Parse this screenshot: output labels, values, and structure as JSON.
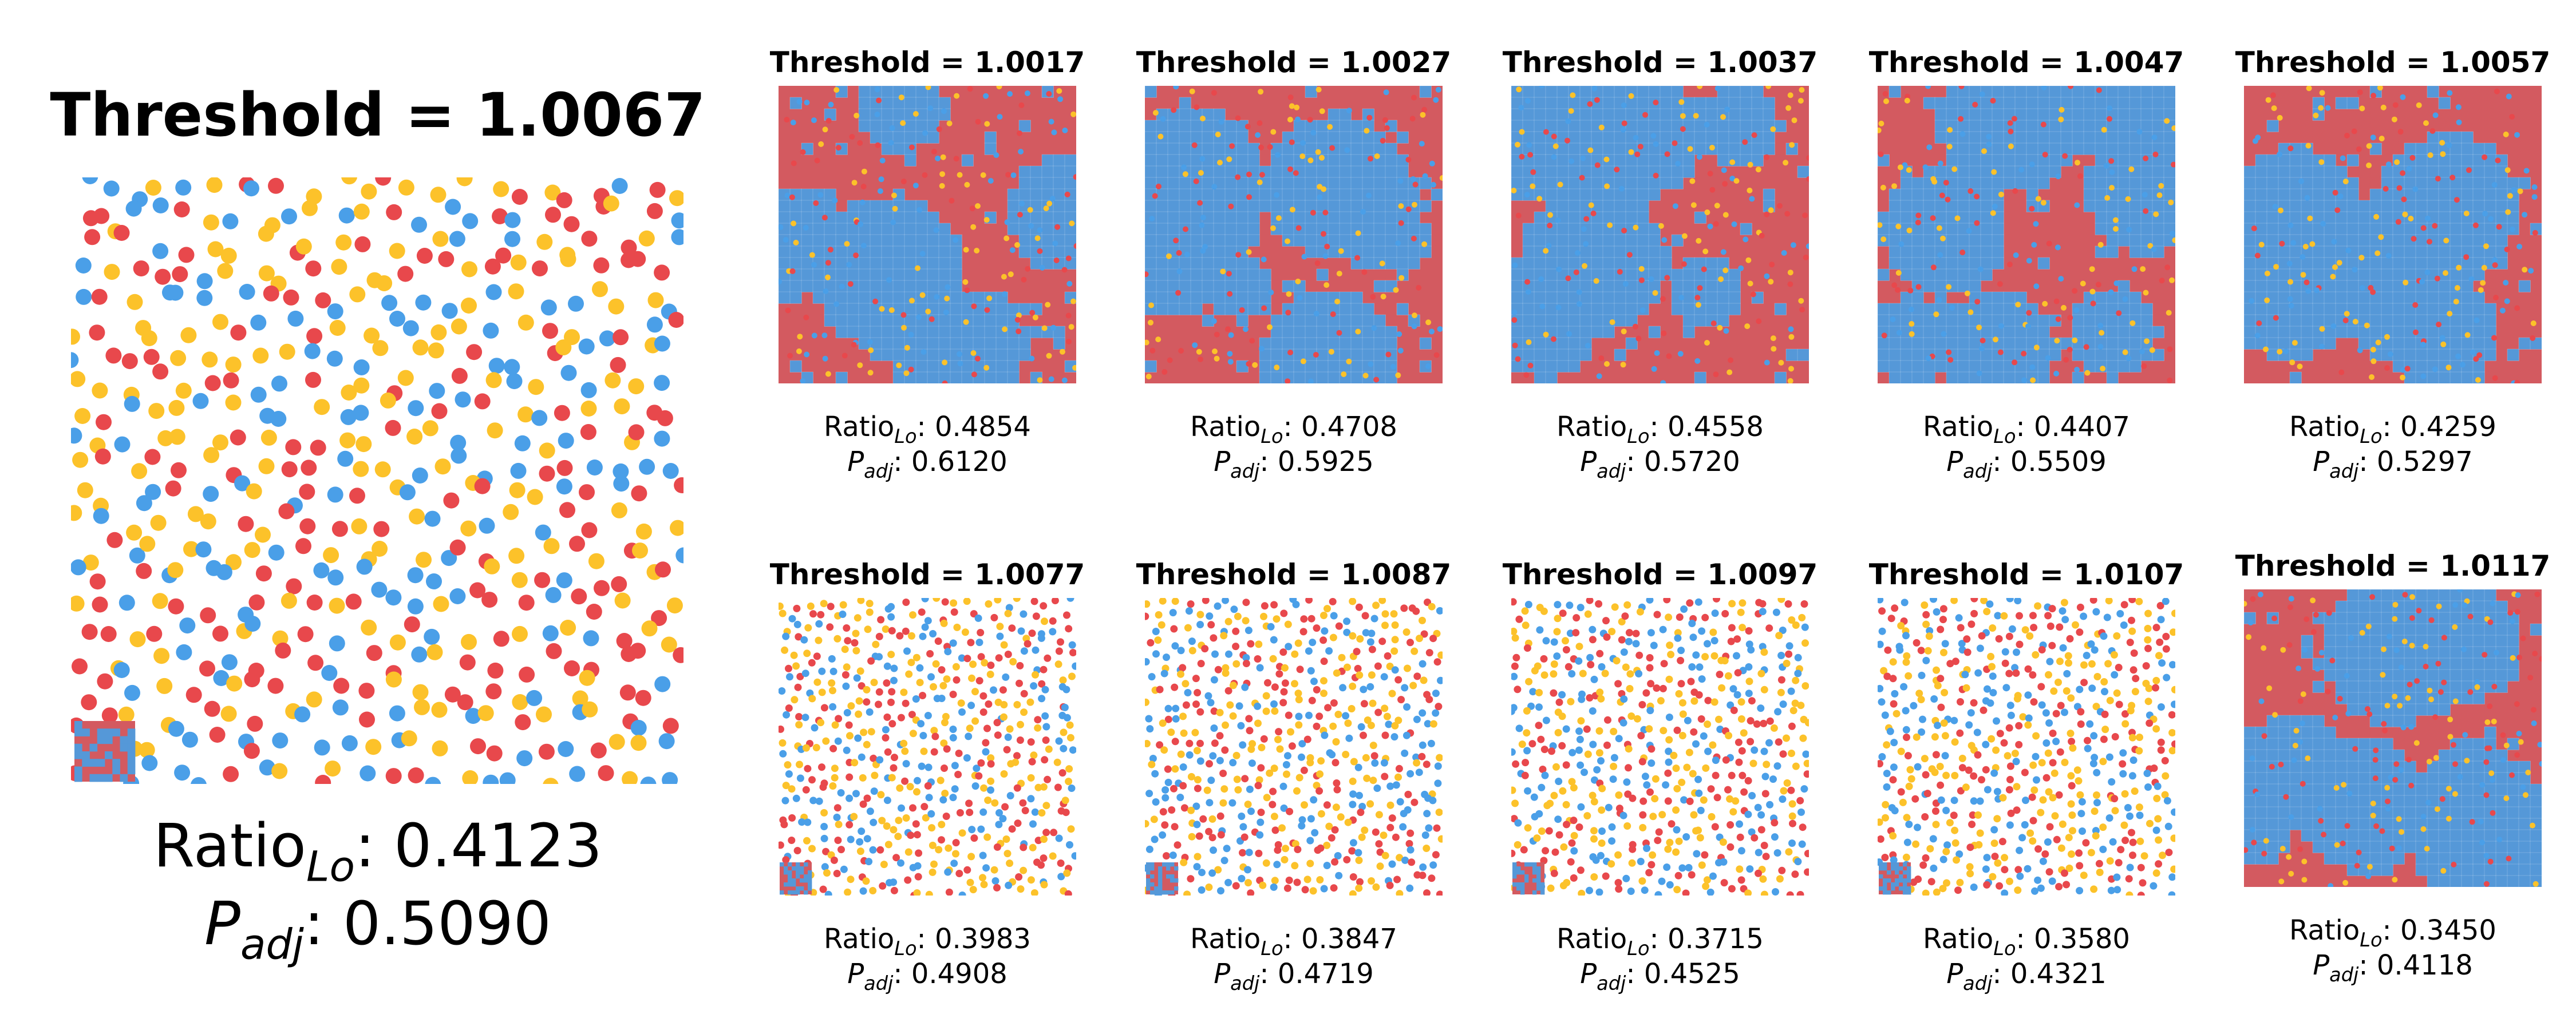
{
  "colors": {
    "red": "#e8484c",
    "blue": "#4a9fe8",
    "yellow": "#fcc22a",
    "region_red": "#d35a60",
    "region_blue": "#5598d8",
    "boundary": "#ffffff"
  },
  "labels": {
    "ratio_prefix": "Ratio",
    "ratio_sub": "Lo",
    "p_prefix": "P",
    "p_sub": "adj",
    "sep": ": "
  },
  "main": {
    "title": "Threshold = 1.0067",
    "ratio": "0.4123",
    "p_adj": "0.5090",
    "chart_data": {
      "type": "scatter",
      "marker_classes": [
        "red",
        "blue",
        "yellow"
      ],
      "style": "points",
      "point_count": 520,
      "has_inset_thumbnail": true
    }
  },
  "panels": [
    {
      "title": "Threshold = 1.0017",
      "ratio": "0.4854",
      "p_adj": "0.6120",
      "style": "map",
      "chart_data": {
        "type": "heatmap"
      }
    },
    {
      "title": "Threshold = 1.0027",
      "ratio": "0.4708",
      "p_adj": "0.5925",
      "style": "map",
      "chart_data": {
        "type": "heatmap"
      }
    },
    {
      "title": "Threshold = 1.0037",
      "ratio": "0.4558",
      "p_adj": "0.5720",
      "style": "map",
      "chart_data": {
        "type": "heatmap"
      }
    },
    {
      "title": "Threshold = 1.0047",
      "ratio": "0.4407",
      "p_adj": "0.5509",
      "style": "map",
      "chart_data": {
        "type": "heatmap"
      }
    },
    {
      "title": "Threshold = 1.0057",
      "ratio": "0.4259",
      "p_adj": "0.5297",
      "style": "map",
      "chart_data": {
        "type": "heatmap"
      }
    },
    {
      "title": "Threshold = 1.0077",
      "ratio": "0.3983",
      "p_adj": "0.4908",
      "style": "points",
      "chart_data": {
        "type": "scatter"
      }
    },
    {
      "title": "Threshold = 1.0087",
      "ratio": "0.3847",
      "p_adj": "0.4719",
      "style": "points",
      "chart_data": {
        "type": "scatter"
      }
    },
    {
      "title": "Threshold = 1.0097",
      "ratio": "0.3715",
      "p_adj": "0.4525",
      "style": "points",
      "chart_data": {
        "type": "scatter"
      }
    },
    {
      "title": "Threshold = 1.0107",
      "ratio": "0.3580",
      "p_adj": "0.4321",
      "style": "points",
      "chart_data": {
        "type": "scatter"
      }
    },
    {
      "title": "Threshold = 1.0117",
      "ratio": "0.3450",
      "p_adj": "0.4118",
      "style": "map",
      "chart_data": {
        "type": "heatmap"
      }
    }
  ]
}
